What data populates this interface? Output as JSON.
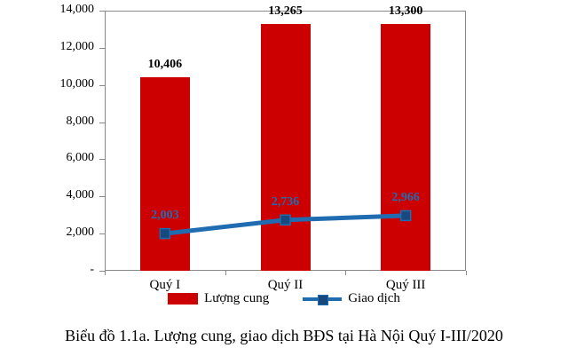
{
  "chart_data": {
    "type": "bar+line",
    "categories": [
      "Quý I",
      "Quý II",
      "Quý III"
    ],
    "series": [
      {
        "name": "Lượng cung",
        "type": "bar",
        "color": "#CC0000",
        "values": [
          10406,
          13265,
          13300
        ],
        "labels": [
          "10,406",
          "13,265",
          "13,300"
        ]
      },
      {
        "name": "Giao dịch",
        "type": "line",
        "color": "#1F6CB0",
        "marker_color": "#17497E",
        "values": [
          2003,
          2736,
          2966
        ],
        "labels": [
          "2,003",
          "2,736",
          "2,966"
        ]
      }
    ],
    "ylim": [
      0,
      14000
    ],
    "ytick_step": 2000,
    "ytick_labels": [
      "-",
      "2,000",
      "4,000",
      "6,000",
      "8,000",
      "10,000",
      "12,000",
      "14,000"
    ],
    "grid": false,
    "legend_position": "bottom"
  },
  "legend": [
    {
      "label": "Lượng cung",
      "swatch": "bar"
    },
    {
      "label": "Giao dịch",
      "swatch": "line"
    }
  ],
  "caption": "Biểu đồ 1.1a. Lượng cung, giao dịch BĐS tại Hà Nội Quý I-III/2020"
}
